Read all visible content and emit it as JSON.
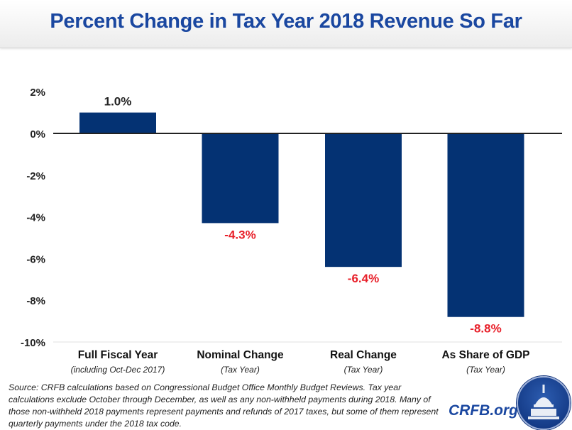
{
  "chart_data": {
    "type": "bar",
    "title": "Percent Change in Tax Year 2018 Revenue So Far",
    "categories": [
      "Full Fiscal Year",
      "Nominal Change",
      "Real Change",
      "As Share of GDP"
    ],
    "subcategories": [
      "(including Oct-Dec 2017)",
      "(Tax Year)",
      "(Tax Year)",
      "(Tax Year)"
    ],
    "values": [
      1.0,
      -4.3,
      -6.4,
      -8.8
    ],
    "data_labels": [
      "1.0%",
      "-4.3%",
      "-6.4%",
      "-8.8%"
    ],
    "ylim": [
      -10,
      2
    ],
    "yticks": [
      2,
      0,
      -2,
      -4,
      -6,
      -8,
      -10
    ],
    "ytick_labels": [
      "2%",
      "0%",
      "-2%",
      "-4%",
      "-6%",
      "-8%",
      "-10%"
    ],
    "xlabel": "",
    "ylabel": "",
    "grid": false,
    "colors": {
      "bar": "#043273",
      "positive_label": "#222222",
      "negative_label": "#e8202a",
      "title": "#1a47a0"
    }
  },
  "footnote": "Source: CRFB calculations based on Congressional Budget Office Monthly Budget Reviews. Tax year calculations exclude October through December, as well as any non-withheld payments during 2018. Many of those non-withheld 2018 payments represent payments and refunds of 2017 taxes, but some of them represent quarterly payments under the 2018 tax code.",
  "logo": {
    "text": "CRFB.org",
    "icon": "capitol-dome-seal-icon"
  }
}
